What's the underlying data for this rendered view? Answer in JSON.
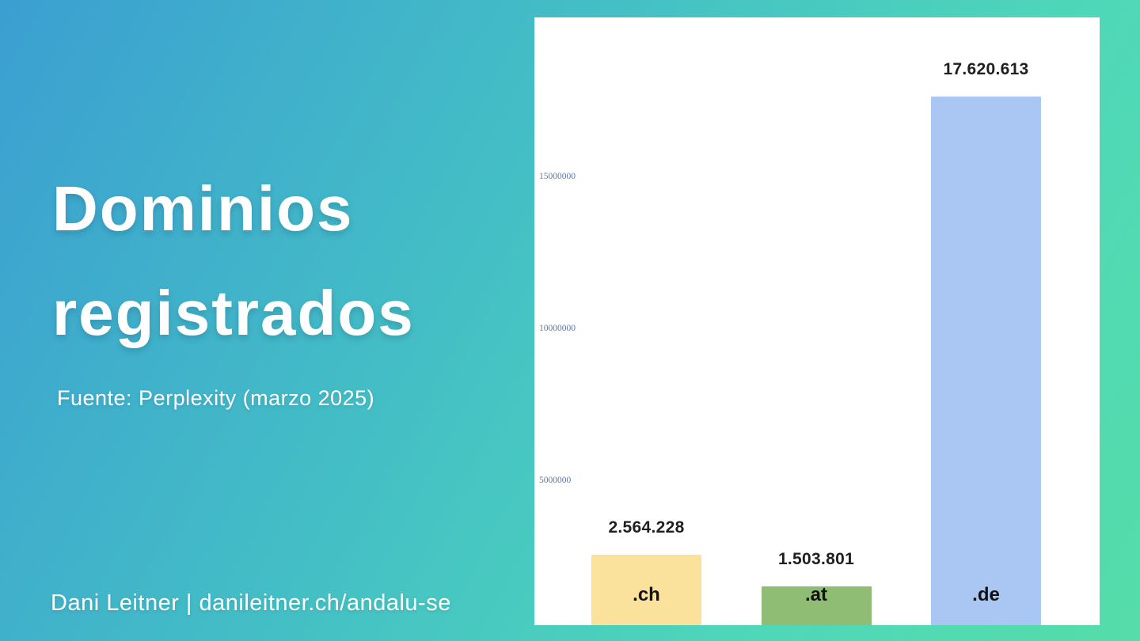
{
  "slide": {
    "title_line1": "Dominios",
    "title_line2": "registrados",
    "source": "Fuente: Perplexity (marzo 2025)",
    "footer": "Dani Leitner | danileitner.ch/andalu-se"
  },
  "colors": {
    "bg_gradient_start": "#3b9fd1",
    "bg_gradient_end": "#55dca9",
    "panel_background": "#ffffff",
    "slide_text": "#ffffff",
    "value_label_text": "#1f1f1f",
    "tick_label_text": "#5b7aa5"
  },
  "chart_data": {
    "type": "bar",
    "title": "",
    "xlabel": "",
    "ylabel": "",
    "categories": [
      ".ch",
      ".at",
      ".de"
    ],
    "values": [
      2564228,
      1503801,
      17620613
    ],
    "value_labels": [
      "2.564.228",
      "1.503.801",
      "17.620.613"
    ],
    "bar_colors": [
      "#fbe29c",
      "#90bd74",
      "#aac6f2"
    ],
    "ytick_values": [
      5000000,
      10000000,
      15000000
    ],
    "ytick_labels": [
      "5000000",
      "10000000",
      "15000000"
    ],
    "ylim": [
      0,
      18000000
    ],
    "grid": false,
    "legend_position": "none"
  }
}
